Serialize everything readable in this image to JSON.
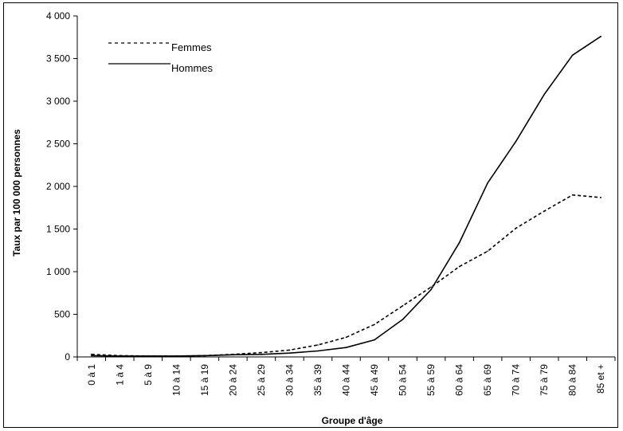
{
  "chart_data": {
    "type": "line",
    "title": "",
    "xlabel": "Groupe d'âge",
    "ylabel": "Taux par 100 000 personnes",
    "ylim": [
      0,
      4000
    ],
    "yticks": [
      0,
      500,
      1000,
      1500,
      2000,
      2500,
      3000,
      3500,
      4000
    ],
    "ytick_labels": [
      "0",
      "500",
      "1 000",
      "1 500",
      "2 000",
      "2 500",
      "3 000",
      "3 500",
      "4 000"
    ],
    "categories": [
      "0 à 1",
      "1 à 4",
      "5 à 9",
      "10 à 14",
      "15 à 19",
      "20 à 24",
      "25 à 29",
      "30 à 34",
      "35 à 39",
      "40 à 44",
      "45 à 49",
      "50 à 54",
      "55 à 59",
      "60 à 64",
      "65 à 69",
      "70 à 74",
      "75 à 79",
      "80 à 84",
      "85 et +"
    ],
    "grid": false,
    "legend_position": "top-left",
    "series": [
      {
        "name": "Femmes",
        "style": "dashed",
        "color": "#000000",
        "values": [
          30,
          15,
          10,
          10,
          15,
          30,
          50,
          80,
          140,
          230,
          380,
          600,
          820,
          1060,
          1240,
          1510,
          1710,
          1900,
          1870
        ]
      },
      {
        "name": "Hommes",
        "style": "solid",
        "color": "#000000",
        "values": [
          15,
          10,
          10,
          10,
          15,
          25,
          30,
          45,
          70,
          110,
          200,
          440,
          790,
          1340,
          2040,
          2530,
          3080,
          3540,
          3760
        ]
      }
    ]
  }
}
